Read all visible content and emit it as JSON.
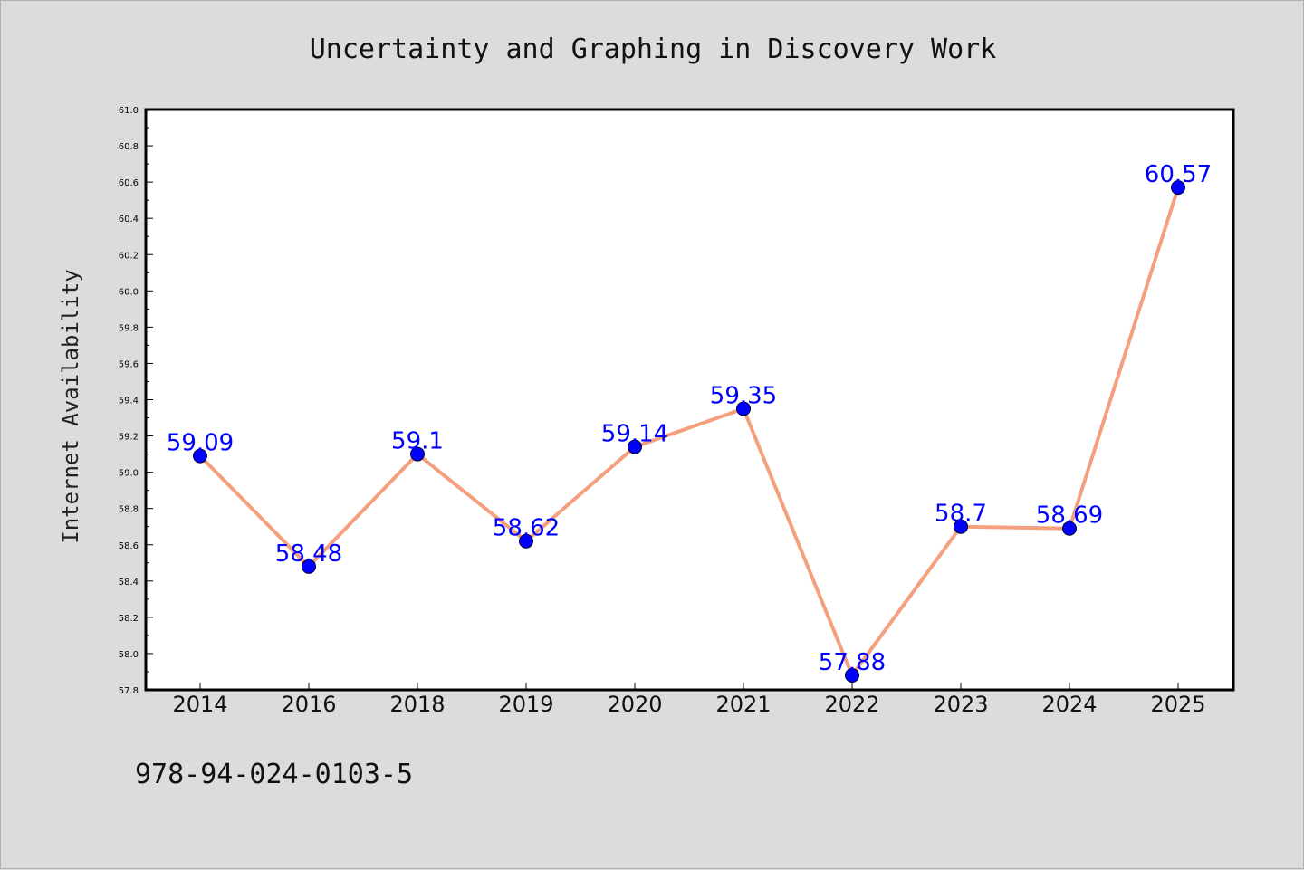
{
  "chart_data": {
    "type": "line",
    "title": "Uncertainty and Graphing in Discovery Work",
    "xlabel": "",
    "ylabel": "Internet Availability",
    "categories": [
      "2014",
      "2016",
      "2018",
      "2019",
      "2020",
      "2021",
      "2022",
      "2023",
      "2024",
      "2025"
    ],
    "series": [
      {
        "values": [
          59.09,
          58.48,
          59.1,
          58.62,
          59.14,
          59.35,
          57.88,
          58.7,
          58.69,
          60.57
        ],
        "labels": [
          "59.09",
          "58.48",
          "59.1",
          "58.62",
          "59.14",
          "59.35",
          "57.88",
          "58.7",
          "58.69",
          "60.57"
        ]
      }
    ],
    "ylim": [
      57.8,
      61.0
    ],
    "yticks": [
      "57.8",
      "58.0",
      "58.2",
      "58.4",
      "58.6",
      "58.8",
      "59.0",
      "59.2",
      "59.4",
      "59.6",
      "59.8",
      "60.0",
      "60.2",
      "60.4",
      "60.6",
      "60.8",
      "61.0"
    ],
    "grid": false,
    "legend": "none",
    "colors": {
      "line": "#f4a07e",
      "marker": "#0000ff",
      "label": "#0000ff",
      "background": "#dcdcdc",
      "plot_area": "#ffffff"
    }
  },
  "footer": {
    "isbn": "978-94-024-0103-5"
  }
}
